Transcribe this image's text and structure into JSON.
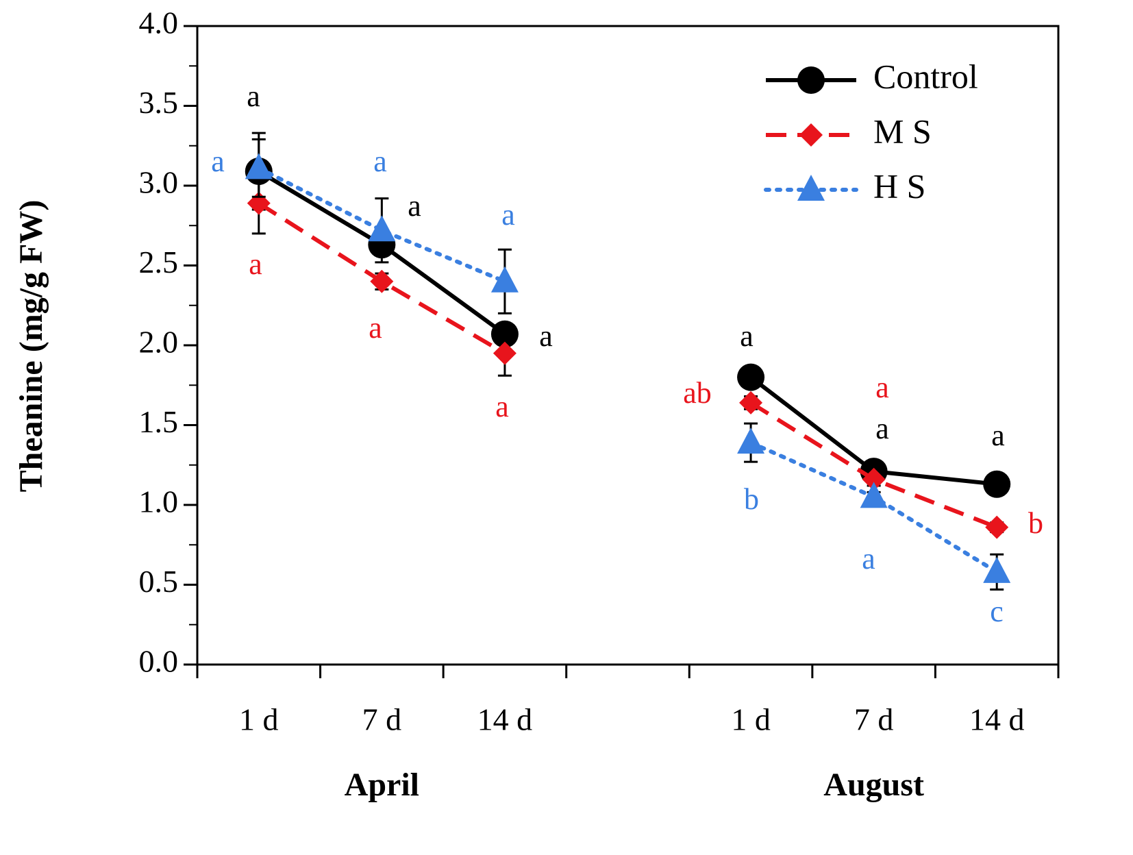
{
  "chart_data": {
    "type": "line",
    "y_label": "Theanine (mg/g FW)",
    "categories": [
      "1 d",
      "7 d",
      "14 d",
      null,
      "1 d",
      "7 d",
      "14 d"
    ],
    "groups": [
      "April",
      "August"
    ],
    "ylim": [
      0,
      4
    ],
    "yticks": [
      {
        "value": 0,
        "label": "0.0"
      },
      0.5,
      {
        "value": 1,
        "label": "1.0"
      },
      1.5,
      {
        "value": 2,
        "label": "2.0"
      },
      2.5,
      {
        "value": 3,
        "label": "3.0"
      },
      3.5,
      {
        "value": 4,
        "label": "4.0"
      }
    ],
    "yminorticks": [
      0.25,
      0.75,
      1.25,
      1.75,
      2.25,
      2.75,
      3.25,
      3.75
    ],
    "legend": "top-right",
    "series": [
      {
        "name": "Control",
        "color": "#000000",
        "marker": "circle",
        "dash": "solid",
        "values": [
          3.09,
          2.63,
          2.07,
          null,
          1.8,
          1.21,
          1.13
        ],
        "errors": [
          0.24,
          0.05,
          0.04,
          null,
          0.04,
          0.06,
          0.03
        ],
        "letters": [
          "a",
          "a",
          "a",
          null,
          "a",
          "a",
          "a"
        ]
      },
      {
        "name": "M S",
        "color": "#e8141c",
        "marker": "diamond",
        "dash": "dashed",
        "values": [
          2.89,
          2.4,
          1.95,
          null,
          1.64,
          1.16,
          0.86
        ],
        "errors": [
          0.19,
          0.05,
          0.14,
          null,
          0.04,
          0.04,
          0.03
        ],
        "letters": [
          "a",
          "a",
          "a",
          null,
          "ab",
          "a",
          "b"
        ]
      },
      {
        "name": "H S",
        "color": "#3a7fe0",
        "marker": "triangle",
        "dash": "dotted",
        "values": [
          3.11,
          2.72,
          2.4,
          null,
          1.39,
          1.05,
          0.58
        ],
        "errors": [
          0.18,
          0.2,
          0.2,
          null,
          0.12,
          0.03,
          0.11
        ],
        "letters": [
          "a",
          "a",
          "a",
          null,
          "b",
          "a",
          "c"
        ]
      }
    ]
  }
}
